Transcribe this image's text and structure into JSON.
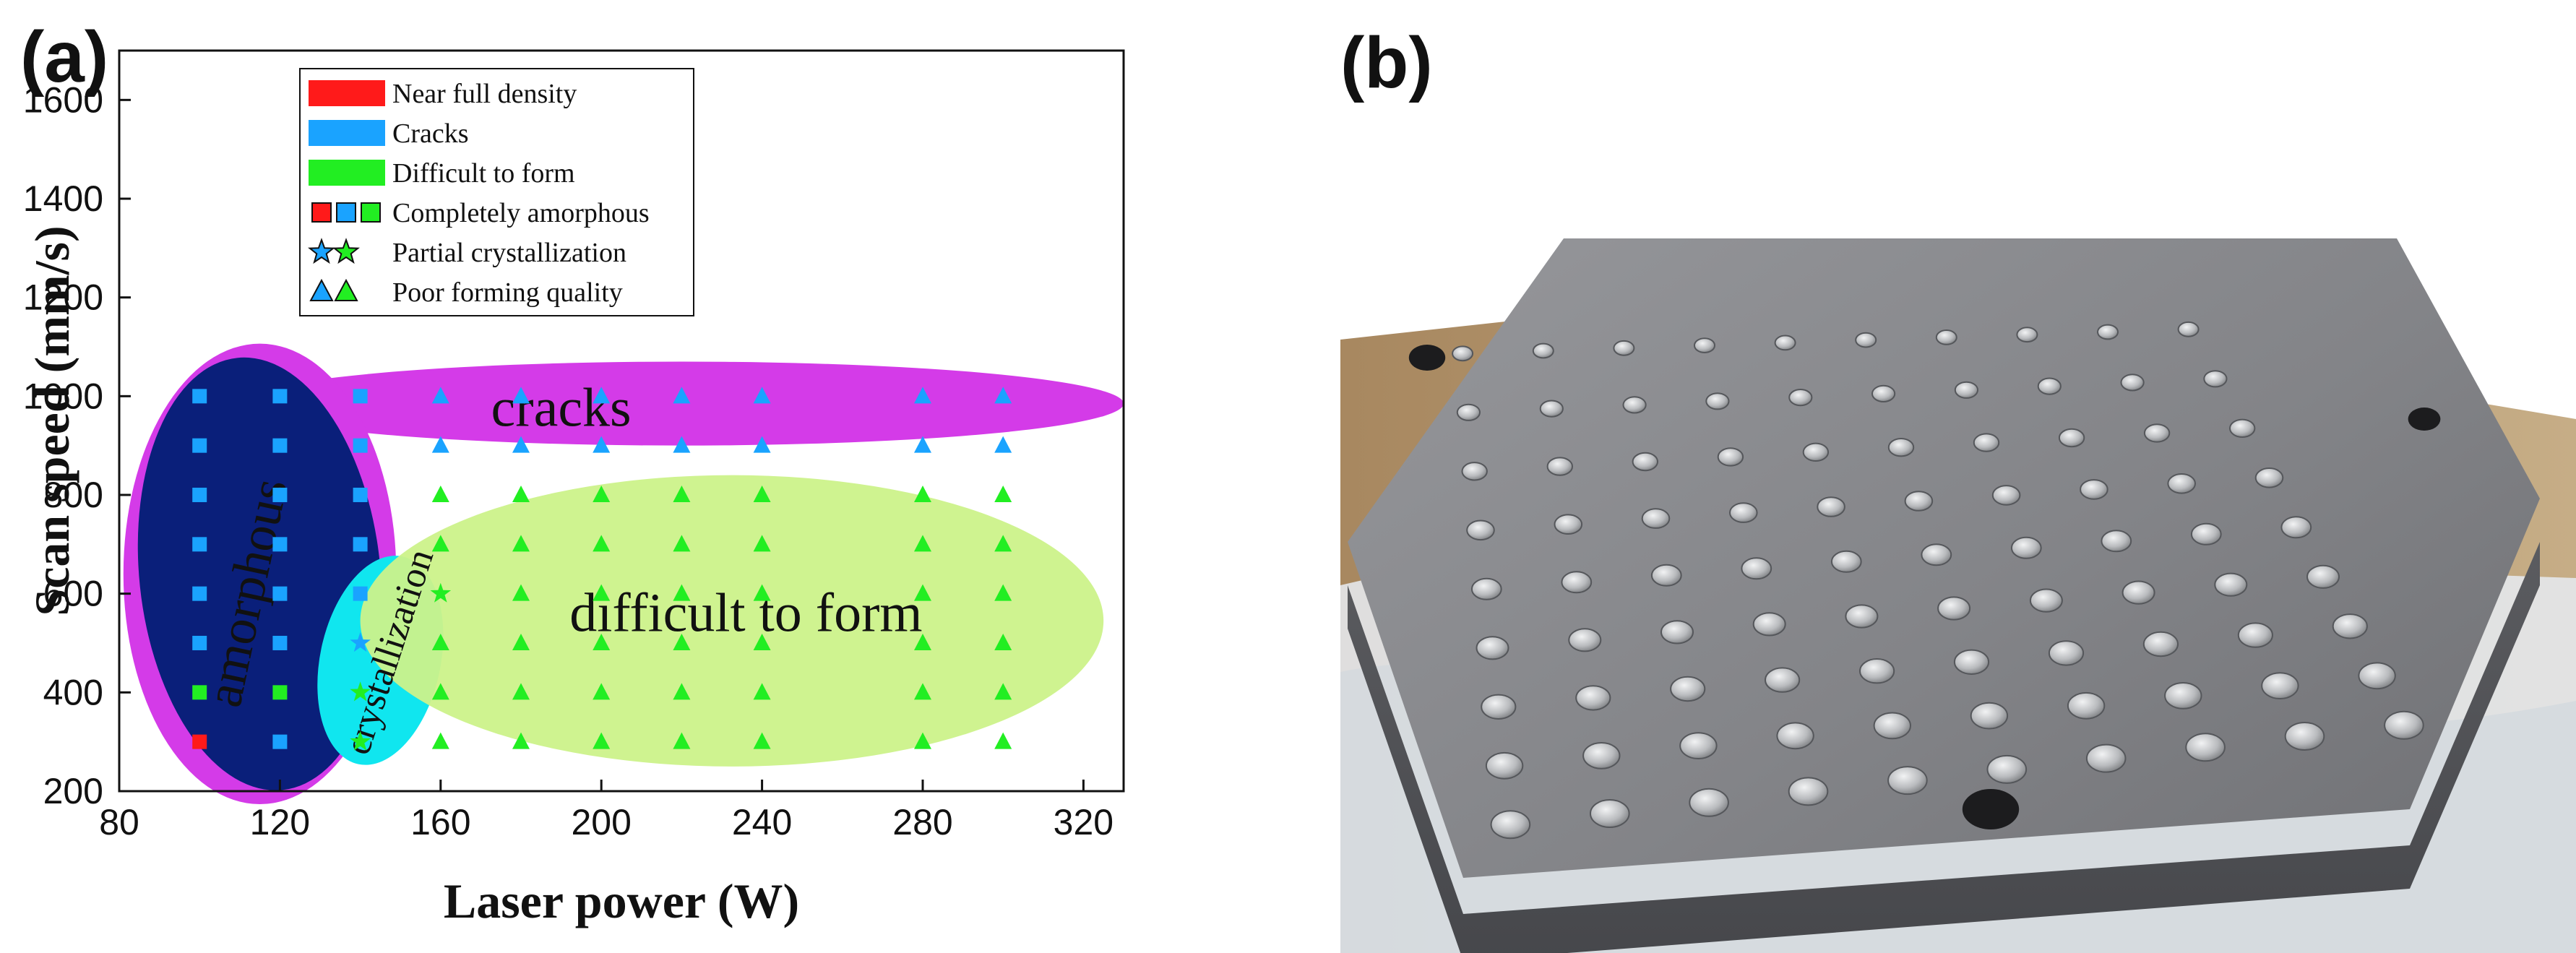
{
  "panel_a": {
    "label": "(a)"
  },
  "panel_b": {
    "label": "(b)"
  },
  "chart_data": {
    "type": "scatter",
    "xlabel": "Laser power (W)",
    "ylabel": "Scan speed (mm/s)",
    "xlim": [
      80,
      330
    ],
    "ylim": [
      200,
      1700
    ],
    "xticks": [
      80,
      120,
      160,
      200,
      240,
      280,
      320
    ],
    "yticks": [
      200,
      400,
      600,
      800,
      1000,
      1200,
      1400,
      1600
    ],
    "grid": false,
    "legend_position": "top-center",
    "colors": {
      "near_full_density": "#ff1a1a",
      "cracks": "#1aa3ff",
      "difficult_to_form": "#22ee22",
      "amorphous_region": "#0a1f7a",
      "cracks_region": "#d43be8",
      "crystallization_region": "#10e6ef",
      "difficult_region": "#ccf28a"
    },
    "legend": [
      {
        "label": "Near full density",
        "symbol": "patch",
        "colors": [
          "#ff1a1a"
        ]
      },
      {
        "label": "Cracks",
        "symbol": "patch",
        "colors": [
          "#1aa3ff"
        ]
      },
      {
        "label": "Difficult to form",
        "symbol": "patch",
        "colors": [
          "#22ee22"
        ]
      },
      {
        "label": "Completely amorphous",
        "symbol": "square",
        "colors": [
          "#ff1a1a",
          "#1aa3ff",
          "#22ee22"
        ]
      },
      {
        "label": "Partial crystallization",
        "symbol": "star",
        "colors": [
          "#1aa3ff",
          "#22ee22"
        ]
      },
      {
        "label": "Poor forming quality",
        "symbol": "triangle",
        "colors": [
          "#1aa3ff",
          "#22ee22"
        ]
      }
    ],
    "regions": [
      {
        "name": "cracks",
        "label": "cracks",
        "x": [
          110,
          330
        ],
        "y": [
          900,
          1070
        ]
      },
      {
        "name": "amorphous",
        "label": "amorphous",
        "x": [
          85,
          145
        ],
        "y": [
          200,
          1080
        ]
      },
      {
        "name": "crystallization",
        "label": "crystallization",
        "x": [
          130,
          160
        ],
        "y": [
          250,
          680
        ]
      },
      {
        "name": "difficult",
        "label": "difficult to form",
        "x": [
          140,
          325
        ],
        "y": [
          250,
          840
        ]
      }
    ],
    "points": [
      {
        "x": 100,
        "y": 1000,
        "marker": "square",
        "color": "cracks"
      },
      {
        "x": 100,
        "y": 900,
        "marker": "square",
        "color": "cracks"
      },
      {
        "x": 100,
        "y": 800,
        "marker": "square",
        "color": "cracks"
      },
      {
        "x": 100,
        "y": 700,
        "marker": "square",
        "color": "cracks"
      },
      {
        "x": 100,
        "y": 600,
        "marker": "square",
        "color": "cracks"
      },
      {
        "x": 100,
        "y": 500,
        "marker": "square",
        "color": "cracks"
      },
      {
        "x": 100,
        "y": 400,
        "marker": "square",
        "color": "difficult_to_form"
      },
      {
        "x": 100,
        "y": 300,
        "marker": "square",
        "color": "near_full_density"
      },
      {
        "x": 120,
        "y": 1000,
        "marker": "square",
        "color": "cracks"
      },
      {
        "x": 120,
        "y": 900,
        "marker": "square",
        "color": "cracks"
      },
      {
        "x": 120,
        "y": 800,
        "marker": "square",
        "color": "cracks"
      },
      {
        "x": 120,
        "y": 700,
        "marker": "square",
        "color": "cracks"
      },
      {
        "x": 120,
        "y": 600,
        "marker": "square",
        "color": "cracks"
      },
      {
        "x": 120,
        "y": 500,
        "marker": "square",
        "color": "cracks"
      },
      {
        "x": 120,
        "y": 400,
        "marker": "square",
        "color": "difficult_to_form"
      },
      {
        "x": 120,
        "y": 300,
        "marker": "square",
        "color": "cracks"
      },
      {
        "x": 140,
        "y": 1000,
        "marker": "square",
        "color": "cracks"
      },
      {
        "x": 140,
        "y": 900,
        "marker": "square",
        "color": "cracks"
      },
      {
        "x": 140,
        "y": 800,
        "marker": "square",
        "color": "cracks"
      },
      {
        "x": 140,
        "y": 700,
        "marker": "square",
        "color": "cracks"
      },
      {
        "x": 140,
        "y": 600,
        "marker": "square",
        "color": "cracks"
      },
      {
        "x": 140,
        "y": 500,
        "marker": "star",
        "color": "cracks"
      },
      {
        "x": 140,
        "y": 400,
        "marker": "star",
        "color": "difficult_to_form"
      },
      {
        "x": 140,
        "y": 300,
        "marker": "star",
        "color": "difficult_to_form"
      },
      {
        "x": 160,
        "y": 1000,
        "marker": "triangle",
        "color": "cracks"
      },
      {
        "x": 160,
        "y": 900,
        "marker": "triangle",
        "color": "cracks"
      },
      {
        "x": 160,
        "y": 800,
        "marker": "triangle",
        "color": "difficult_to_form"
      },
      {
        "x": 160,
        "y": 700,
        "marker": "triangle",
        "color": "difficult_to_form"
      },
      {
        "x": 160,
        "y": 600,
        "marker": "star",
        "color": "difficult_to_form"
      },
      {
        "x": 160,
        "y": 500,
        "marker": "triangle",
        "color": "difficult_to_form"
      },
      {
        "x": 160,
        "y": 400,
        "marker": "triangle",
        "color": "difficult_to_form"
      },
      {
        "x": 160,
        "y": 300,
        "marker": "triangle",
        "color": "difficult_to_form"
      },
      {
        "x": 180,
        "y": 1000,
        "marker": "triangle",
        "color": "cracks"
      },
      {
        "x": 180,
        "y": 900,
        "marker": "triangle",
        "color": "cracks"
      },
      {
        "x": 180,
        "y": 800,
        "marker": "triangle",
        "color": "difficult_to_form"
      },
      {
        "x": 180,
        "y": 700,
        "marker": "triangle",
        "color": "difficult_to_form"
      },
      {
        "x": 180,
        "y": 600,
        "marker": "triangle",
        "color": "difficult_to_form"
      },
      {
        "x": 180,
        "y": 500,
        "marker": "triangle",
        "color": "difficult_to_form"
      },
      {
        "x": 180,
        "y": 400,
        "marker": "triangle",
        "color": "difficult_to_form"
      },
      {
        "x": 180,
        "y": 300,
        "marker": "triangle",
        "color": "difficult_to_form"
      },
      {
        "x": 200,
        "y": 1000,
        "marker": "triangle",
        "color": "cracks"
      },
      {
        "x": 200,
        "y": 900,
        "marker": "triangle",
        "color": "cracks"
      },
      {
        "x": 200,
        "y": 800,
        "marker": "triangle",
        "color": "difficult_to_form"
      },
      {
        "x": 200,
        "y": 700,
        "marker": "triangle",
        "color": "difficult_to_form"
      },
      {
        "x": 200,
        "y": 600,
        "marker": "triangle",
        "color": "difficult_to_form"
      },
      {
        "x": 200,
        "y": 500,
        "marker": "triangle",
        "color": "difficult_to_form"
      },
      {
        "x": 200,
        "y": 400,
        "marker": "triangle",
        "color": "difficult_to_form"
      },
      {
        "x": 200,
        "y": 300,
        "marker": "triangle",
        "color": "difficult_to_form"
      },
      {
        "x": 220,
        "y": 1000,
        "marker": "triangle",
        "color": "cracks"
      },
      {
        "x": 220,
        "y": 900,
        "marker": "triangle",
        "color": "cracks"
      },
      {
        "x": 220,
        "y": 800,
        "marker": "triangle",
        "color": "difficult_to_form"
      },
      {
        "x": 220,
        "y": 700,
        "marker": "triangle",
        "color": "difficult_to_form"
      },
      {
        "x": 220,
        "y": 600,
        "marker": "triangle",
        "color": "difficult_to_form"
      },
      {
        "x": 220,
        "y": 500,
        "marker": "triangle",
        "color": "difficult_to_form"
      },
      {
        "x": 220,
        "y": 400,
        "marker": "triangle",
        "color": "difficult_to_form"
      },
      {
        "x": 220,
        "y": 300,
        "marker": "triangle",
        "color": "difficult_to_form"
      },
      {
        "x": 240,
        "y": 1000,
        "marker": "triangle",
        "color": "cracks"
      },
      {
        "x": 240,
        "y": 900,
        "marker": "triangle",
        "color": "cracks"
      },
      {
        "x": 240,
        "y": 800,
        "marker": "triangle",
        "color": "difficult_to_form"
      },
      {
        "x": 240,
        "y": 700,
        "marker": "triangle",
        "color": "difficult_to_form"
      },
      {
        "x": 240,
        "y": 600,
        "marker": "triangle",
        "color": "difficult_to_form"
      },
      {
        "x": 240,
        "y": 500,
        "marker": "triangle",
        "color": "difficult_to_form"
      },
      {
        "x": 240,
        "y": 400,
        "marker": "triangle",
        "color": "difficult_to_form"
      },
      {
        "x": 240,
        "y": 300,
        "marker": "triangle",
        "color": "difficult_to_form"
      },
      {
        "x": 280,
        "y": 1000,
        "marker": "triangle",
        "color": "cracks"
      },
      {
        "x": 280,
        "y": 900,
        "marker": "triangle",
        "color": "cracks"
      },
      {
        "x": 280,
        "y": 800,
        "marker": "triangle",
        "color": "difficult_to_form"
      },
      {
        "x": 280,
        "y": 700,
        "marker": "triangle",
        "color": "difficult_to_form"
      },
      {
        "x": 280,
        "y": 600,
        "marker": "triangle",
        "color": "difficult_to_form"
      },
      {
        "x": 280,
        "y": 500,
        "marker": "triangle",
        "color": "difficult_to_form"
      },
      {
        "x": 280,
        "y": 400,
        "marker": "triangle",
        "color": "difficult_to_form"
      },
      {
        "x": 280,
        "y": 300,
        "marker": "triangle",
        "color": "difficult_to_form"
      },
      {
        "x": 300,
        "y": 1000,
        "marker": "triangle",
        "color": "cracks"
      },
      {
        "x": 300,
        "y": 900,
        "marker": "triangle",
        "color": "cracks"
      },
      {
        "x": 300,
        "y": 800,
        "marker": "triangle",
        "color": "difficult_to_form"
      },
      {
        "x": 300,
        "y": 700,
        "marker": "triangle",
        "color": "difficult_to_form"
      },
      {
        "x": 300,
        "y": 600,
        "marker": "triangle",
        "color": "difficult_to_form"
      },
      {
        "x": 300,
        "y": 500,
        "marker": "triangle",
        "color": "difficult_to_form"
      },
      {
        "x": 300,
        "y": 400,
        "marker": "triangle",
        "color": "difficult_to_form"
      },
      {
        "x": 300,
        "y": 300,
        "marker": "triangle",
        "color": "difficult_to_form"
      }
    ]
  }
}
